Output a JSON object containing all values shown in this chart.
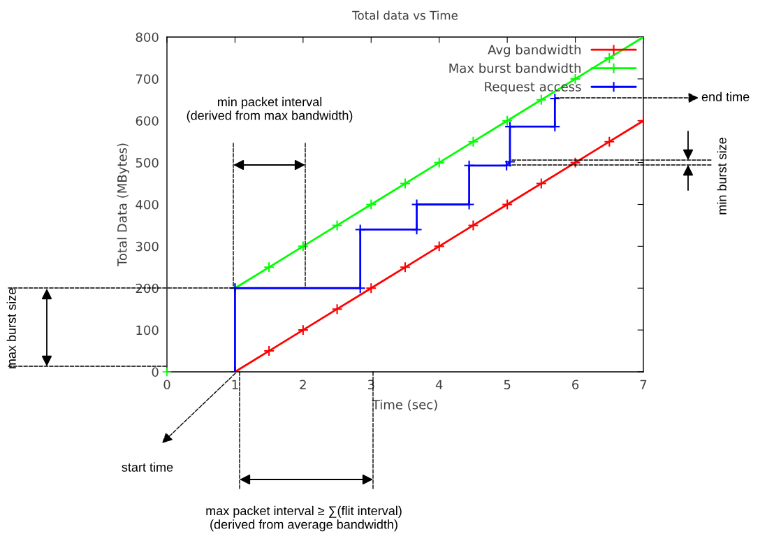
{
  "chart_data": {
    "type": "line",
    "title": "Total data vs Time",
    "xlabel": "Time (sec)",
    "ylabel": "Total Data (MBytes)",
    "xlim": [
      0,
      7
    ],
    "ylim": [
      0,
      800
    ],
    "xticks": [
      0,
      1,
      2,
      3,
      4,
      5,
      6,
      7
    ],
    "yticks": [
      0,
      100,
      200,
      300,
      400,
      500,
      600,
      700,
      800
    ],
    "grid": false,
    "legend": "top right",
    "marker": "cross",
    "line_style": "solid",
    "series": [
      {
        "name": "Avg bandwidth",
        "color": "#ff0000",
        "x": [
          1,
          1.5,
          2,
          2.5,
          3,
          3.5,
          4,
          4.5,
          5,
          5.5,
          6,
          6.5,
          7
        ],
        "values": [
          0,
          50,
          100,
          150,
          200,
          250,
          300,
          350,
          400,
          450,
          500,
          550,
          600
        ]
      },
      {
        "name": "Max burst bandwidth",
        "color": "#00ff00",
        "x": [
          1,
          1.5,
          2,
          2.5,
          3,
          3.5,
          4,
          4.5,
          5,
          5.5,
          6,
          6.5,
          7
        ],
        "values": [
          200,
          250,
          300,
          350,
          400,
          450,
          500,
          550,
          600,
          650,
          700,
          750,
          800
        ]
      },
      {
        "name": "Request access",
        "color": "#0000ff",
        "x": [
          1,
          1,
          2.84,
          2.84,
          3.67,
          3.67,
          4.44,
          4.44,
          4.99,
          5.04,
          5.04,
          5.7,
          5.7
        ],
        "values": [
          0,
          200,
          200,
          340,
          340,
          400,
          400,
          493,
          493,
          502,
          586,
          586,
          653
        ]
      },
      {
        "type": "scatter",
        "color": "#00ff00",
        "x": [
          0
        ],
        "values": [
          0
        ]
      }
    ],
    "annotations": [
      "min packet interval\n(derived from max bandwidth)",
      "max packet interval ≥ ∑(flit interval)\n(derived from average bandwidth)",
      "start time",
      "end time",
      "max burst size",
      "min burst size"
    ]
  }
}
